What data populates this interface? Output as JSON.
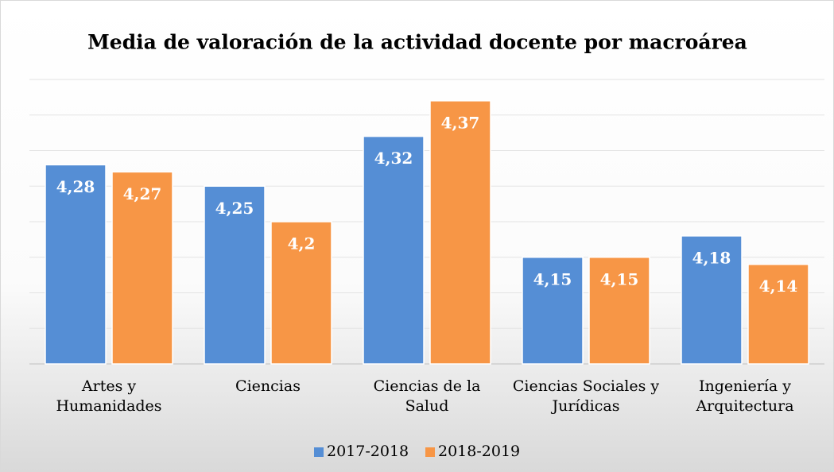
{
  "chart_data": {
    "type": "bar",
    "title": "Media de valoración de la actividad docente por macroárea",
    "categories": [
      [
        "Artes y",
        "Humanidades"
      ],
      [
        "Ciencias"
      ],
      [
        "Ciencias de la",
        "Salud"
      ],
      [
        "Ciencias Sociales y",
        "Jurídicas"
      ],
      [
        "Ingeniería y",
        "Arquitectura"
      ]
    ],
    "series": [
      {
        "name": "2017-2018",
        "color": "#558ed5",
        "values": [
          4.28,
          4.25,
          4.32,
          4.15,
          4.18
        ],
        "value_labels": [
          "4,28",
          "4,25",
          "4,32",
          "4,15",
          "4,18"
        ]
      },
      {
        "name": "2018-2019",
        "color": "#f79646",
        "values": [
          4.27,
          4.2,
          4.37,
          4.15,
          4.14
        ],
        "value_labels": [
          "4,27",
          "4,2",
          "4,37",
          "4,15",
          "4,14"
        ]
      }
    ],
    "ylim": [
      4.0,
      4.4
    ],
    "yticks": [
      4.0,
      4.05,
      4.1,
      4.15,
      4.2,
      4.25,
      4.3,
      4.35,
      4.4
    ],
    "grid": true,
    "legend": "bottom"
  }
}
